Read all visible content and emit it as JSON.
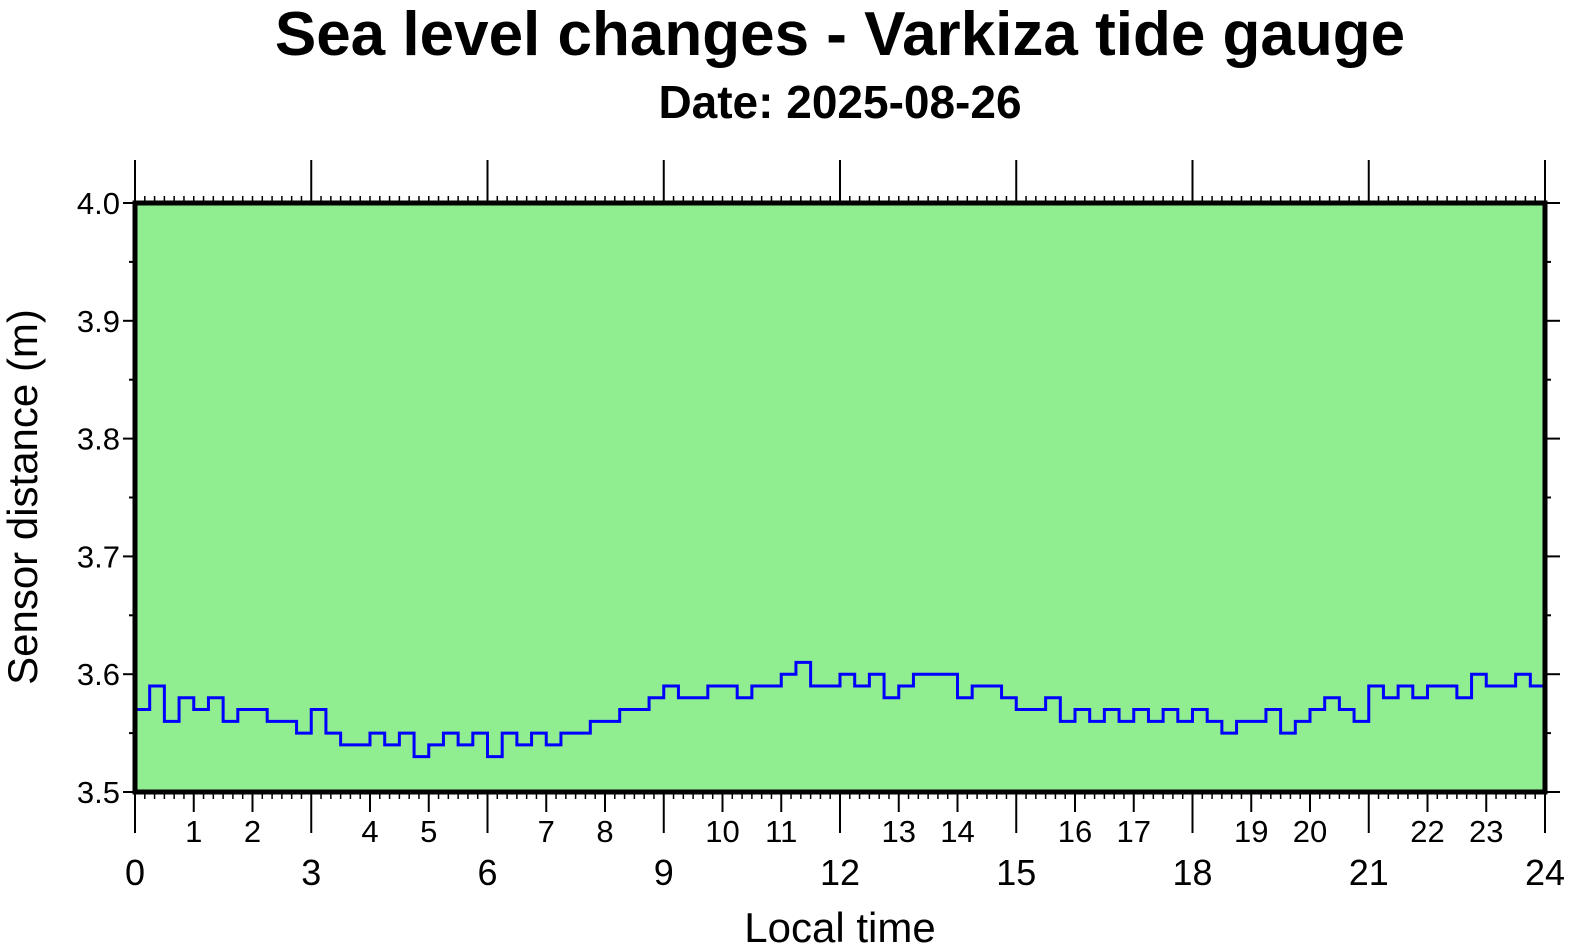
{
  "chart_data": {
    "type": "line",
    "title": "Sea level changes - Varkiza tide gauge",
    "subtitle": "Date: 2025-08-26",
    "xlabel": "Local time",
    "ylabel": "Sensor distance (m)",
    "xlim": [
      0,
      24
    ],
    "ylim": [
      3.5,
      4.0
    ],
    "x_major_ticks": [
      0,
      3,
      6,
      9,
      12,
      15,
      18,
      21,
      24
    ],
    "x_minor_labels": [
      1,
      2,
      4,
      5,
      7,
      8,
      10,
      11,
      13,
      14,
      16,
      17,
      19,
      20,
      22,
      23
    ],
    "y_ticks": [
      "3.5",
      "3.6",
      "3.7",
      "3.8",
      "3.9",
      "4.0"
    ],
    "grid": false,
    "colors": {
      "background": "#90ee90",
      "line": "#0000ff",
      "frame": "#000000"
    },
    "series": [
      {
        "name": "Sensor distance",
        "x_step_hours": 0.25,
        "values": [
          3.57,
          3.59,
          3.56,
          3.58,
          3.57,
          3.58,
          3.56,
          3.57,
          3.57,
          3.56,
          3.56,
          3.55,
          3.57,
          3.55,
          3.54,
          3.54,
          3.55,
          3.54,
          3.55,
          3.53,
          3.54,
          3.55,
          3.54,
          3.55,
          3.53,
          3.55,
          3.54,
          3.55,
          3.54,
          3.55,
          3.55,
          3.56,
          3.56,
          3.57,
          3.57,
          3.58,
          3.59,
          3.58,
          3.58,
          3.59,
          3.59,
          3.58,
          3.59,
          3.59,
          3.6,
          3.61,
          3.59,
          3.59,
          3.6,
          3.59,
          3.6,
          3.58,
          3.59,
          3.6,
          3.6,
          3.6,
          3.58,
          3.59,
          3.59,
          3.58,
          3.57,
          3.57,
          3.58,
          3.56,
          3.57,
          3.56,
          3.57,
          3.56,
          3.57,
          3.56,
          3.57,
          3.56,
          3.57,
          3.56,
          3.55,
          3.56,
          3.56,
          3.57,
          3.55,
          3.56,
          3.57,
          3.58,
          3.57,
          3.56,
          3.59,
          3.58,
          3.59,
          3.58,
          3.59,
          3.59,
          3.58,
          3.6,
          3.59,
          3.59,
          3.6,
          3.59,
          3.6
        ]
      }
    ]
  }
}
